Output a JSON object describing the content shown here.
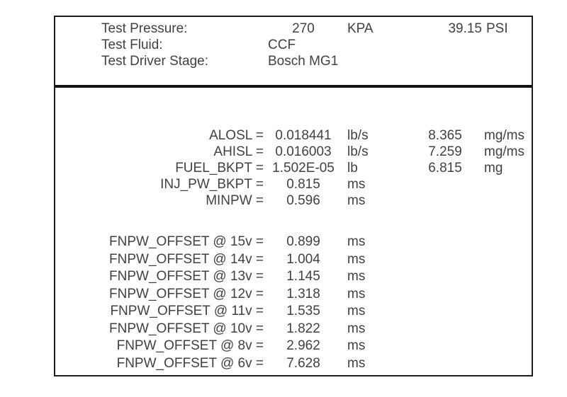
{
  "report": {
    "colors": {
      "border": "#1c1c1c",
      "divider": "#111111",
      "text": "#414141",
      "background": "#ffffff"
    },
    "header_rows": [
      {
        "label": "Test Pressure:",
        "value": "270",
        "unit": "KPA",
        "value2": "39.15",
        "unit2": "PSI"
      },
      {
        "label": "Test Fluid:",
        "value": "CCF"
      },
      {
        "label": "Test Driver Stage:",
        "value": "Bosch MG1"
      }
    ],
    "result_rows": [
      {
        "label": "ALOSL =",
        "value": "0.018441",
        "unit": "lb/s",
        "value2": "8.365",
        "unit2": "mg/ms"
      },
      {
        "label": "AHISL =",
        "value": "0.016003",
        "unit": "lb/s",
        "value2": "7.259",
        "unit2": "mg/ms"
      },
      {
        "label": "FUEL_BKPT =",
        "value": "1.502E-05",
        "unit": "lb",
        "value2": "6.815",
        "unit2": "mg"
      },
      {
        "label": "INJ_PW_BKPT =",
        "value": "0.815",
        "unit": "ms"
      },
      {
        "label": "MINPW =",
        "value": "0.596",
        "unit": "ms"
      }
    ],
    "offset_rows": [
      {
        "label": "FNPW_OFFSET @ 15v =",
        "value": "0.899",
        "unit": "ms"
      },
      {
        "label": "FNPW_OFFSET @ 14v =",
        "value": "1.004",
        "unit": "ms"
      },
      {
        "label": "FNPW_OFFSET @ 13v =",
        "value": "1.145",
        "unit": "ms"
      },
      {
        "label": "FNPW_OFFSET @ 12v =",
        "value": "1.318",
        "unit": "ms"
      },
      {
        "label": "FNPW_OFFSET @ 11v =",
        "value": "1.535",
        "unit": "ms"
      },
      {
        "label": "FNPW_OFFSET @ 10v =",
        "value": "1.822",
        "unit": "ms"
      },
      {
        "label": "FNPW_OFFSET @ 8v =",
        "value": "2.962",
        "unit": "ms"
      },
      {
        "label": "FNPW_OFFSET @ 6v =",
        "value": "7.628",
        "unit": "ms"
      }
    ]
  }
}
